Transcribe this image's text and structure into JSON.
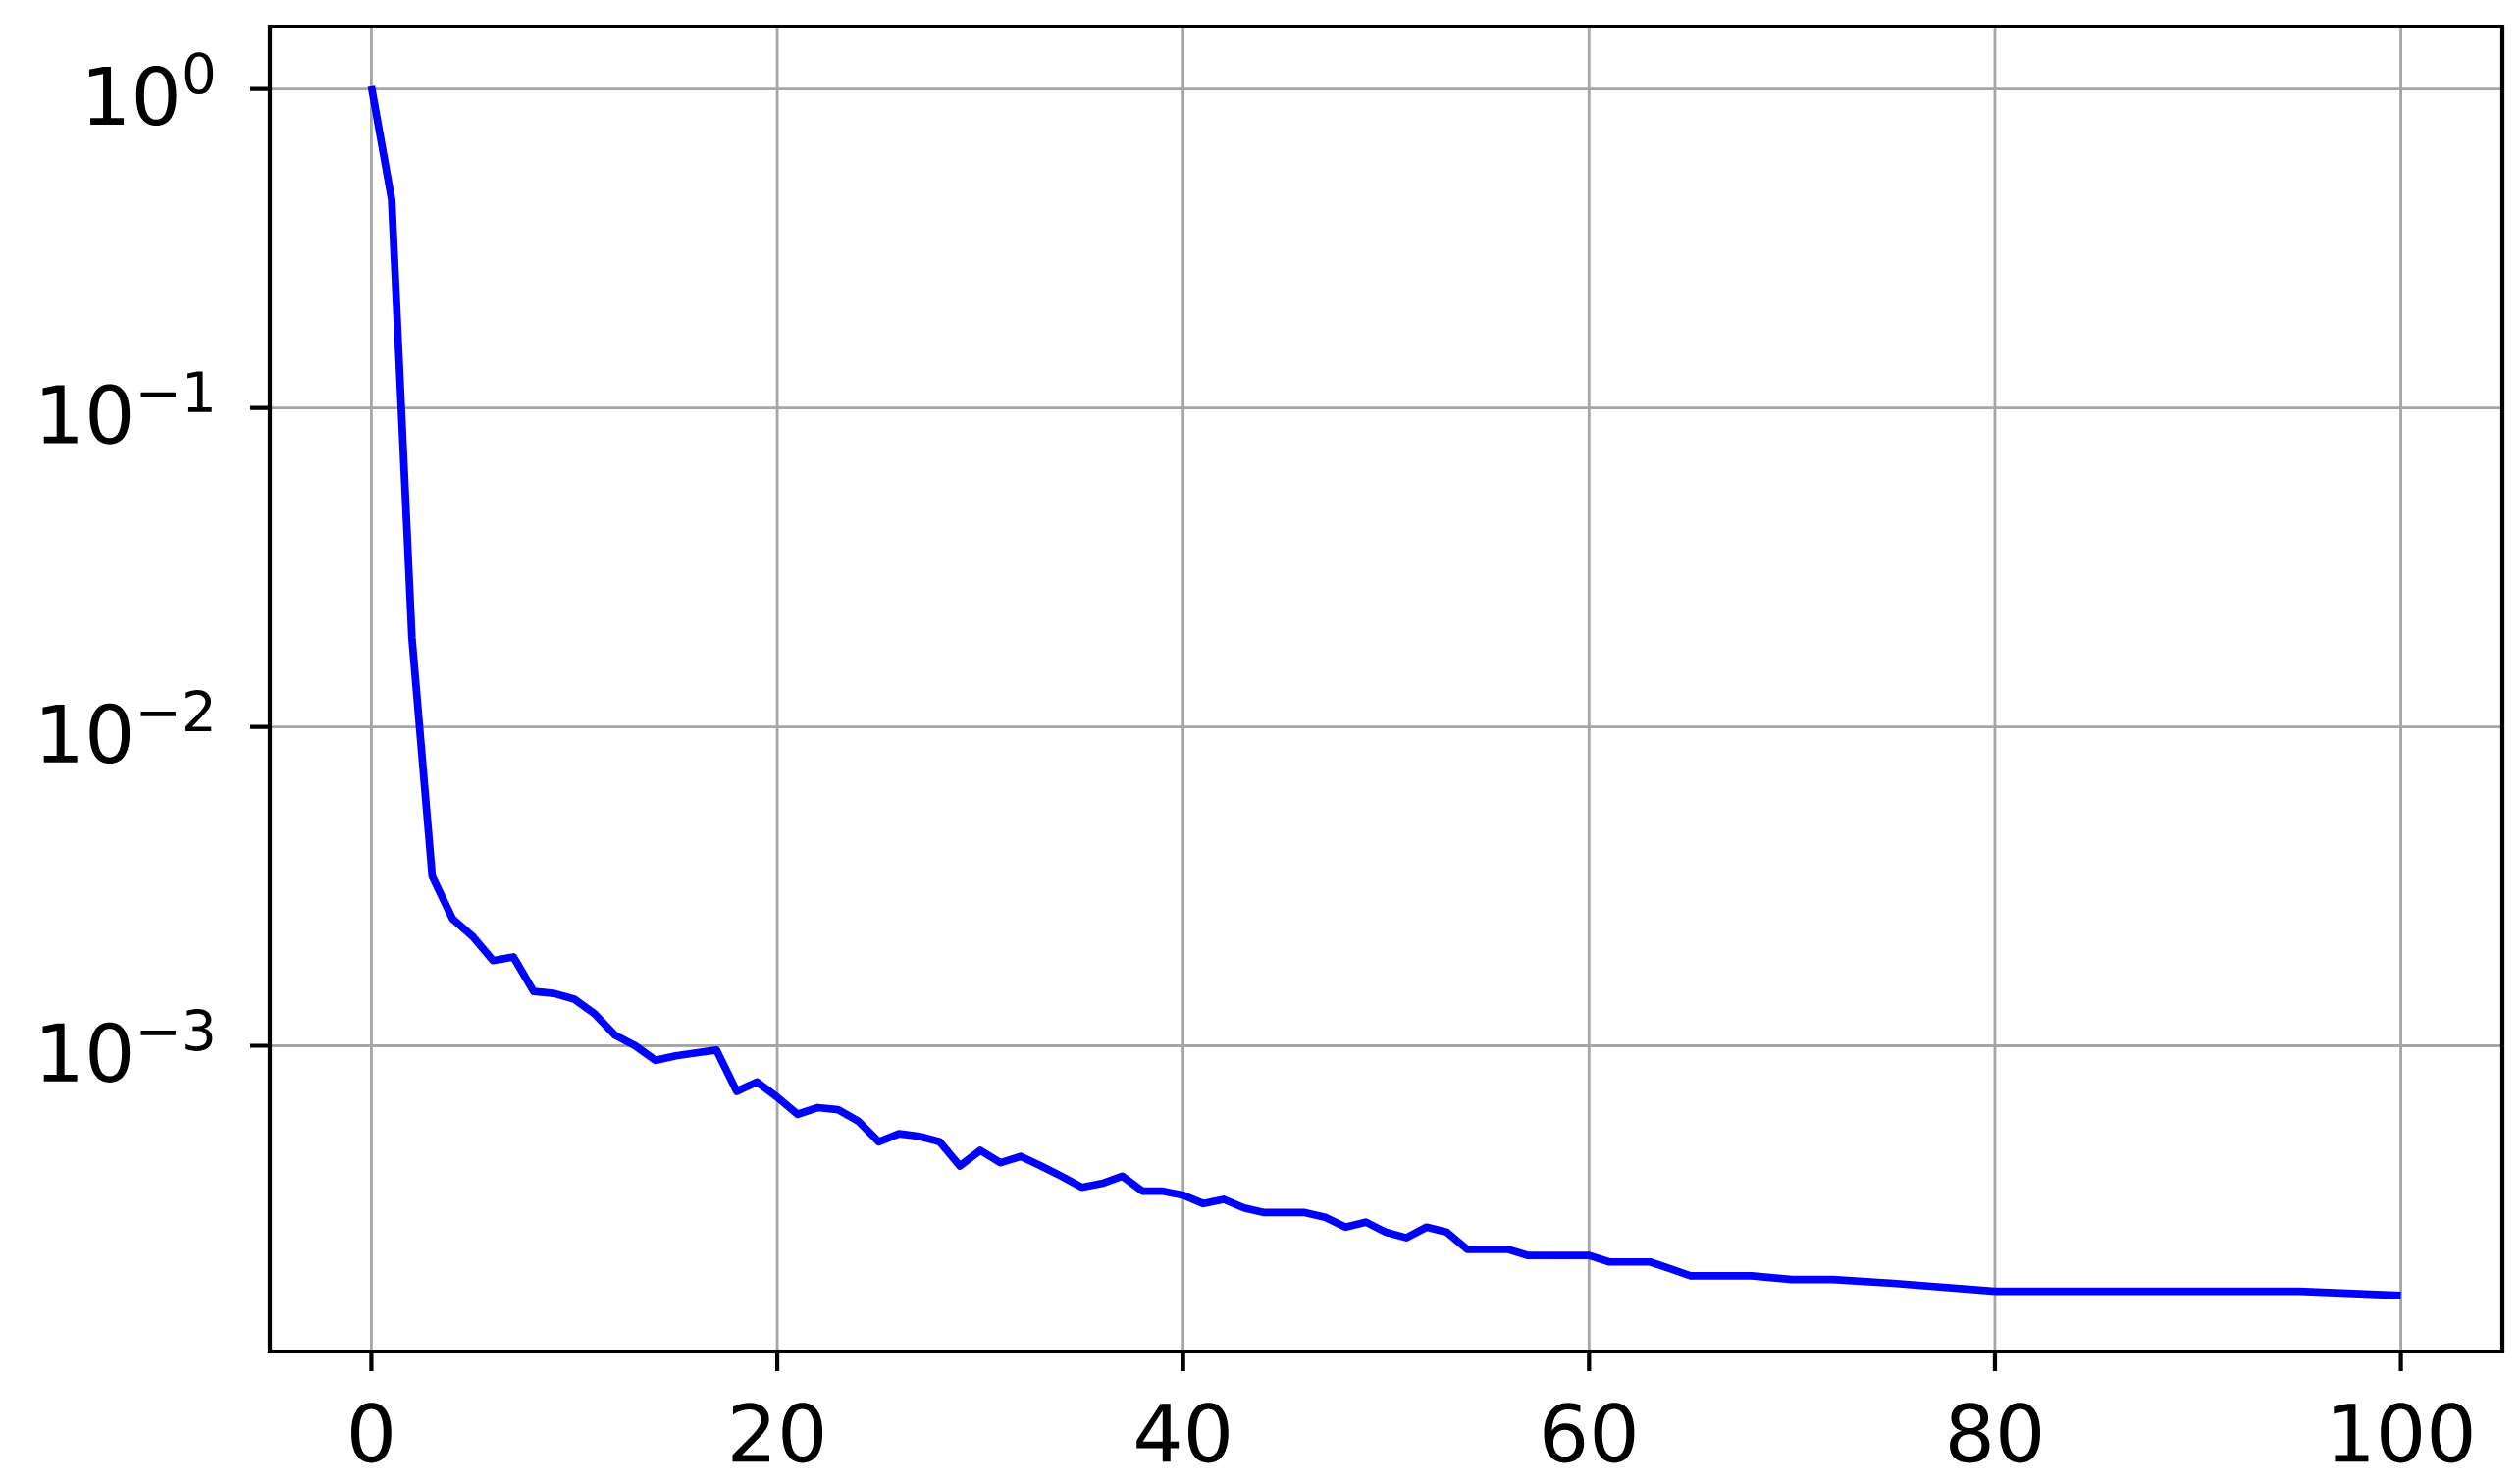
{
  "chart_data": {
    "type": "line",
    "color": "#0000ff",
    "log": "y",
    "grid": true,
    "marker": "none",
    "x": [
      0,
      1,
      2,
      3,
      4,
      5,
      6,
      7,
      8,
      9,
      10,
      11,
      12,
      13,
      14,
      15,
      16,
      17,
      18,
      19,
      20,
      21,
      22,
      23,
      24,
      25,
      26,
      27,
      28,
      29,
      30,
      31,
      32,
      33,
      34,
      35,
      36,
      37,
      38,
      39,
      40,
      41,
      42,
      43,
      44,
      45,
      46,
      47,
      48,
      49,
      50,
      51,
      52,
      53,
      54,
      55,
      56,
      57,
      58,
      59,
      60,
      61,
      62,
      63,
      64,
      65,
      66,
      67,
      68,
      70,
      72,
      75,
      80,
      85,
      90,
      95,
      100
    ],
    "values": [
      1.02,
      0.45,
      0.019,
      0.0034,
      0.0025,
      0.0022,
      0.00185,
      0.0019,
      0.00148,
      0.00146,
      0.0014,
      0.00126,
      0.00108,
      0.001,
      0.0009,
      0.00093,
      0.00095,
      0.00097,
      0.00072,
      0.00077,
      0.00069,
      0.00061,
      0.00064,
      0.00063,
      0.00058,
      0.0005,
      0.00053,
      0.00052,
      0.0005,
      0.00042,
      0.00047,
      0.00043,
      0.00045,
      0.00042,
      0.00039,
      0.00036,
      0.00037,
      0.00039,
      0.00035,
      0.00035,
      0.00034,
      0.00032,
      0.00033,
      0.00031,
      0.0003,
      0.0003,
      0.0003,
      0.00029,
      0.00027,
      0.00028,
      0.00026,
      0.00025,
      0.00027,
      0.00026,
      0.00023,
      0.00023,
      0.00023,
      0.00022,
      0.00022,
      0.00022,
      0.00022,
      0.00021,
      0.00021,
      0.00021,
      0.0002,
      0.00019,
      0.00019,
      0.00019,
      0.00019,
      0.000185,
      0.000185,
      0.00018,
      0.00017,
      0.00017,
      0.00017,
      0.00017,
      0.000165
    ],
    "xlim": [
      -5,
      105
    ],
    "ylim": [
      0.00011,
      1.57
    ],
    "xticks": [
      0,
      20,
      40,
      60,
      80,
      100
    ],
    "yticks": [
      {
        "value": 0.001,
        "label": "10$^{−3}$"
      },
      {
        "value": 0.01,
        "label": "10$^{−2}$"
      },
      {
        "value": 0.1,
        "label": "10$^{−1}$"
      },
      {
        "value": 1,
        "label": "10$^{0}$"
      }
    ]
  }
}
